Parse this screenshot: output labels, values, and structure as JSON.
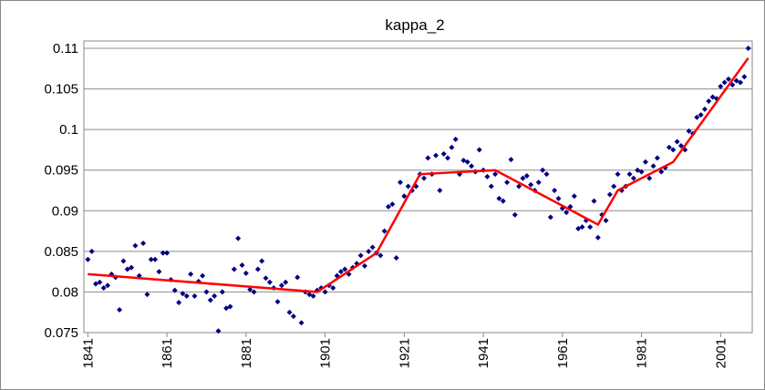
{
  "chart_data": {
    "type": "scatter",
    "title": "kappa_2",
    "xlim": [
      1840,
      2009
    ],
    "xticks": [
      1841,
      1861,
      1881,
      1901,
      1921,
      1941,
      1961,
      1981,
      2001
    ],
    "ylim": [
      0.075,
      0.11
    ],
    "yticks": [
      0.075,
      0.08,
      0.085,
      0.09,
      0.095,
      0.1,
      0.105,
      0.11
    ],
    "grid": true,
    "series": [
      {
        "type": "scatter",
        "color": "#000080",
        "x": [
          1841,
          1842,
          1843,
          1844,
          1845,
          1846,
          1847,
          1848,
          1849,
          1850,
          1851,
          1852,
          1853,
          1854,
          1855,
          1856,
          1857,
          1858,
          1859,
          1860,
          1861,
          1862,
          1863,
          1864,
          1865,
          1866,
          1867,
          1868,
          1869,
          1870,
          1871,
          1872,
          1873,
          1874,
          1875,
          1876,
          1877,
          1878,
          1879,
          1880,
          1881,
          1882,
          1883,
          1884,
          1885,
          1886,
          1887,
          1888,
          1889,
          1890,
          1891,
          1892,
          1893,
          1894,
          1895,
          1896,
          1897,
          1898,
          1899,
          1900,
          1901,
          1902,
          1903,
          1904,
          1905,
          1906,
          1907,
          1908,
          1909,
          1910,
          1911,
          1912,
          1913,
          1914,
          1915,
          1916,
          1917,
          1918,
          1919,
          1920,
          1921,
          1922,
          1923,
          1924,
          1925,
          1926,
          1927,
          1928,
          1929,
          1930,
          1931,
          1932,
          1933,
          1934,
          1935,
          1936,
          1937,
          1938,
          1939,
          1940,
          1941,
          1942,
          1943,
          1944,
          1945,
          1946,
          1947,
          1948,
          1949,
          1950,
          1951,
          1952,
          1953,
          1954,
          1955,
          1956,
          1957,
          1958,
          1959,
          1960,
          1961,
          1962,
          1963,
          1964,
          1965,
          1966,
          1967,
          1968,
          1969,
          1970,
          1971,
          1972,
          1973,
          1974,
          1975,
          1976,
          1977,
          1978,
          1979,
          1980,
          1981,
          1982,
          1983,
          1984,
          1985,
          1986,
          1987,
          1988,
          1989,
          1990,
          1991,
          1992,
          1993,
          1994,
          1995,
          1996,
          1997,
          1998,
          1999,
          2000,
          2001,
          2002,
          2003,
          2004,
          2005,
          2006,
          2007,
          2008
        ],
        "values": [
          0.084,
          0.085,
          0.081,
          0.0812,
          0.0805,
          0.0808,
          0.0822,
          0.0818,
          0.0778,
          0.0838,
          0.0828,
          0.083,
          0.0857,
          0.082,
          0.086,
          0.0797,
          0.084,
          0.084,
          0.0825,
          0.0848,
          0.0848,
          0.0815,
          0.0802,
          0.0787,
          0.0798,
          0.0795,
          0.0822,
          0.0795,
          0.0813,
          0.082,
          0.08,
          0.079,
          0.0795,
          0.0752,
          0.08,
          0.078,
          0.0782,
          0.0828,
          0.0866,
          0.0833,
          0.0823,
          0.0803,
          0.08,
          0.0828,
          0.0838,
          0.0817,
          0.0812,
          0.0805,
          0.0788,
          0.0808,
          0.0812,
          0.0775,
          0.077,
          0.0818,
          0.0762,
          0.08,
          0.0797,
          0.0795,
          0.0802,
          0.0805,
          0.08,
          0.0808,
          0.0805,
          0.082,
          0.0825,
          0.0828,
          0.0822,
          0.083,
          0.0835,
          0.0845,
          0.0832,
          0.085,
          0.0855,
          0.0848,
          0.0845,
          0.0875,
          0.0905,
          0.0908,
          0.0842,
          0.0935,
          0.0918,
          0.093,
          0.0925,
          0.093,
          0.0945,
          0.094,
          0.0965,
          0.0945,
          0.0968,
          0.0925,
          0.097,
          0.0965,
          0.0978,
          0.0988,
          0.0945,
          0.0962,
          0.096,
          0.0955,
          0.0948,
          0.0975,
          0.095,
          0.0942,
          0.093,
          0.0945,
          0.0915,
          0.0912,
          0.0935,
          0.0963,
          0.0895,
          0.093,
          0.094,
          0.0943,
          0.0932,
          0.0925,
          0.0935,
          0.095,
          0.0945,
          0.0892,
          0.0925,
          0.0915,
          0.0903,
          0.0898,
          0.0905,
          0.0918,
          0.0878,
          0.088,
          0.0888,
          0.088,
          0.0912,
          0.0867,
          0.0895,
          0.0888,
          0.092,
          0.093,
          0.0945,
          0.0925,
          0.093,
          0.0945,
          0.094,
          0.095,
          0.0948,
          0.096,
          0.094,
          0.0955,
          0.0965,
          0.0948,
          0.0953,
          0.0978,
          0.0975,
          0.0985,
          0.098,
          0.0975,
          0.0998,
          0.0995,
          0.1015,
          0.1018,
          0.1025,
          0.1035,
          0.104,
          0.1038,
          0.1053,
          0.1058,
          0.1062,
          0.1055,
          0.106,
          0.1058,
          0.1065,
          0.11
        ]
      },
      {
        "type": "line",
        "color": "#ff0000",
        "x": [
          1841,
          1899,
          1914,
          1925,
          1944,
          1970,
          1975,
          1989,
          2008
        ],
        "values": [
          0.0822,
          0.08,
          0.0848,
          0.0945,
          0.095,
          0.0883,
          0.0925,
          0.096,
          0.1088
        ]
      }
    ]
  }
}
